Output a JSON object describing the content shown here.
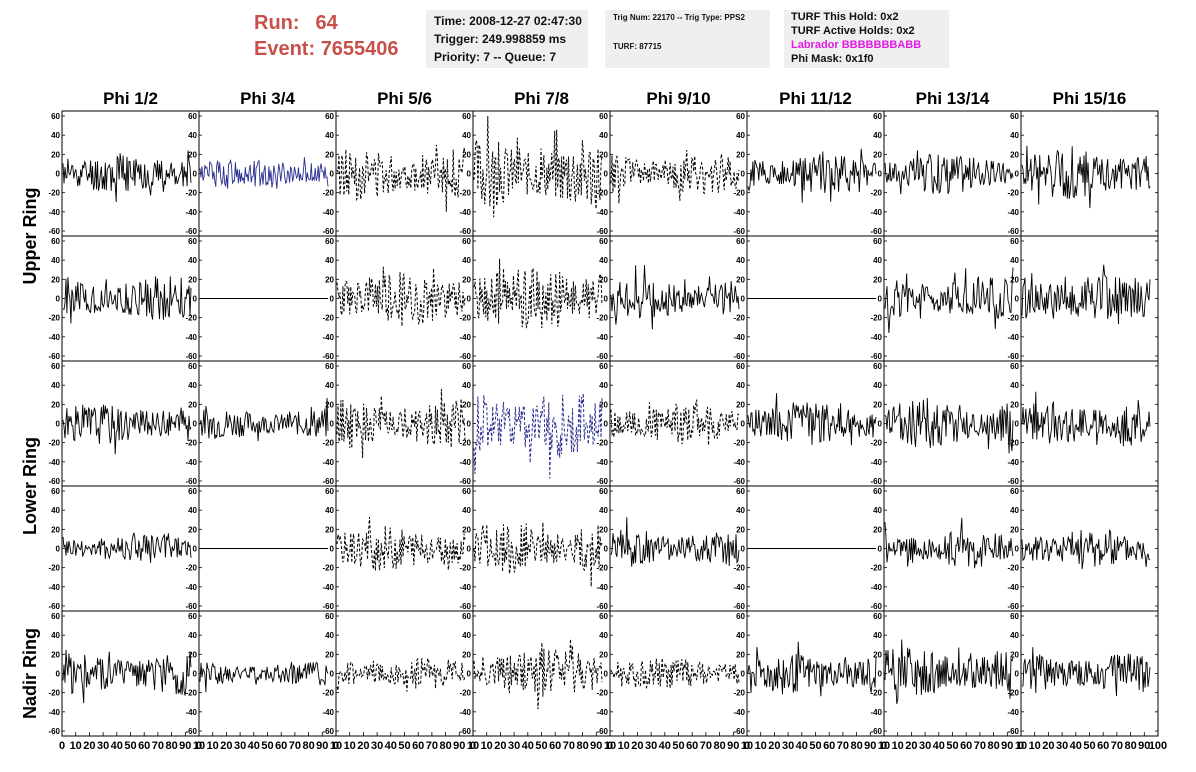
{
  "header": {
    "run_label": "Run:",
    "run_value": "64",
    "event_label": "Event:",
    "event_value": "7655406",
    "time": "Time: 2008-12-27 02:47:30",
    "trigger": "Trigger: 249.998859 ms",
    "priority": "Priority: 7 -- Queue: 7",
    "trig_num": "Trig Num: 22170 -- Trig Type: PPS2",
    "turf": "TURF: 87715",
    "turf_this_hold": "TURF This Hold: 0x2",
    "turf_active_holds": "TURF Active Holds: 0x2",
    "labrador": "Labrador BBBBBBBABB",
    "phi_mask": "Phi Mask: 0x1f0"
  },
  "colors": {
    "header_red": "#c8504b",
    "labrador_magenta": "#e31be5",
    "highlight_blue": "#2b2f8f",
    "trace_black": "#000000"
  },
  "chart_data": {
    "type": "line",
    "columns": [
      "Phi 1/2",
      "Phi 3/4",
      "Phi 5/6",
      "Phi 7/8",
      "Phi 9/10",
      "Phi 11/12",
      "Phi 13/14",
      "Phi 15/16"
    ],
    "rows": [
      "Upper Ring",
      "Lower Ring",
      "Nadir Ring"
    ],
    "y_range": [
      -60,
      60
    ],
    "x_range": [
      0,
      100
    ],
    "y_ticks": [
      -60,
      -40,
      -20,
      0,
      20,
      40,
      60
    ],
    "x_ticks": [
      0,
      10,
      20,
      30,
      40,
      50,
      60,
      70,
      80,
      90,
      100
    ],
    "x_tick_labels": [
      "0",
      "10",
      "20",
      "30",
      "40",
      "50",
      "60",
      "70",
      "80",
      "90",
      "10",
      "0",
      "10",
      "20",
      "30",
      "40",
      "50",
      "60",
      "70",
      "80",
      "90",
      "10",
      "0",
      "10",
      "20",
      "30",
      "40",
      "50",
      "60",
      "70",
      "80",
      "90",
      "10",
      "0",
      "10",
      "20",
      "30",
      "40",
      "50",
      "60",
      "70",
      "80",
      "90",
      "10",
      "0",
      "10",
      "20",
      "30",
      "40",
      "50",
      "60",
      "70",
      "80",
      "90",
      "10",
      "0",
      "10",
      "20",
      "30",
      "40",
      "50",
      "60",
      "70",
      "80",
      "90",
      "10",
      "0",
      "10",
      "20",
      "30",
      "40",
      "50",
      "60",
      "70",
      "80",
      "90",
      "10",
      "0",
      "10",
      "20",
      "30",
      "40",
      "50",
      "60",
      "70",
      "80",
      "90",
      "100"
    ],
    "panels": [
      {
        "row": 0,
        "col": 0,
        "style": "solid",
        "color": "black",
        "amplitude": 20,
        "seed": 11
      },
      {
        "row": 0,
        "col": 1,
        "style": "solid",
        "color": "blue",
        "amplitude": 15,
        "seed": 12
      },
      {
        "row": 0,
        "col": 2,
        "style": "dashed",
        "color": "black",
        "amplitude": 25,
        "seed": 13
      },
      {
        "row": 0,
        "col": 3,
        "style": "dashed",
        "color": "black",
        "amplitude": 35,
        "seed": 14
      },
      {
        "row": 0,
        "col": 4,
        "style": "dashed",
        "color": "black",
        "amplitude": 20,
        "seed": 15
      },
      {
        "row": 0,
        "col": 5,
        "style": "solid",
        "color": "black",
        "amplitude": 20,
        "seed": 16
      },
      {
        "row": 0,
        "col": 6,
        "style": "solid",
        "color": "black",
        "amplitude": 20,
        "seed": 17
      },
      {
        "row": 0,
        "col": 7,
        "style": "solid",
        "color": "black",
        "amplitude": 25,
        "seed": 18
      },
      {
        "row": 1,
        "col": 0,
        "style": "solid",
        "color": "black",
        "amplitude": 22,
        "seed": 21
      },
      {
        "row": 1,
        "col": 1,
        "style": "flat",
        "color": "black",
        "amplitude": 0,
        "seed": 22
      },
      {
        "row": 1,
        "col": 2,
        "style": "dashed",
        "color": "black",
        "amplitude": 28,
        "seed": 23
      },
      {
        "row": 1,
        "col": 3,
        "style": "dashed",
        "color": "black",
        "amplitude": 32,
        "seed": 24
      },
      {
        "row": 1,
        "col": 4,
        "style": "solid",
        "color": "black",
        "amplitude": 20,
        "seed": 25
      },
      {
        "row": 1,
        "col": 5,
        "style": "flat",
        "color": "black",
        "amplitude": 0,
        "seed": 26
      },
      {
        "row": 1,
        "col": 6,
        "style": "solid",
        "color": "black",
        "amplitude": 22,
        "seed": 27
      },
      {
        "row": 1,
        "col": 7,
        "style": "solid",
        "color": "black",
        "amplitude": 25,
        "seed": 28
      },
      {
        "row": 2,
        "col": 0,
        "style": "solid",
        "color": "black",
        "amplitude": 20,
        "seed": 31
      },
      {
        "row": 2,
        "col": 1,
        "style": "solid",
        "color": "black",
        "amplitude": 15,
        "seed": 32
      },
      {
        "row": 2,
        "col": 2,
        "style": "dashed",
        "color": "black",
        "amplitude": 25,
        "seed": 33
      },
      {
        "row": 2,
        "col": 3,
        "style": "dashed",
        "color": "blue",
        "amplitude": 35,
        "seed": 34
      },
      {
        "row": 2,
        "col": 4,
        "style": "dashed",
        "color": "black",
        "amplitude": 20,
        "seed": 35
      },
      {
        "row": 2,
        "col": 5,
        "style": "solid",
        "color": "black",
        "amplitude": 22,
        "seed": 36
      },
      {
        "row": 2,
        "col": 6,
        "style": "solid",
        "color": "black",
        "amplitude": 25,
        "seed": 37
      },
      {
        "row": 2,
        "col": 7,
        "style": "solid",
        "color": "black",
        "amplitude": 22,
        "seed": 38
      },
      {
        "row": 3,
        "col": 0,
        "style": "solid",
        "color": "black",
        "amplitude": 15,
        "seed": 41
      },
      {
        "row": 3,
        "col": 1,
        "style": "flat",
        "color": "black",
        "amplitude": 0,
        "seed": 42
      },
      {
        "row": 3,
        "col": 2,
        "style": "dashed",
        "color": "black",
        "amplitude": 22,
        "seed": 43
      },
      {
        "row": 3,
        "col": 3,
        "style": "dashed",
        "color": "black",
        "amplitude": 25,
        "seed": 44
      },
      {
        "row": 3,
        "col": 4,
        "style": "solid",
        "color": "black",
        "amplitude": 18,
        "seed": 45
      },
      {
        "row": 3,
        "col": 5,
        "style": "flat",
        "color": "black",
        "amplitude": 0,
        "seed": 46
      },
      {
        "row": 3,
        "col": 6,
        "style": "solid",
        "color": "black",
        "amplitude": 18,
        "seed": 47
      },
      {
        "row": 3,
        "col": 7,
        "style": "solid",
        "color": "black",
        "amplitude": 20,
        "seed": 48
      },
      {
        "row": 4,
        "col": 0,
        "style": "solid",
        "color": "black",
        "amplitude": 22,
        "seed": 51
      },
      {
        "row": 4,
        "col": 1,
        "style": "solid",
        "color": "black",
        "amplitude": 12,
        "seed": 52
      },
      {
        "row": 4,
        "col": 2,
        "style": "dashed",
        "color": "black",
        "amplitude": 15,
        "seed": 53
      },
      {
        "row": 4,
        "col": 3,
        "style": "dashed",
        "color": "black",
        "amplitude": 25,
        "seed": 54
      },
      {
        "row": 4,
        "col": 4,
        "style": "dashed",
        "color": "black",
        "amplitude": 15,
        "seed": 55
      },
      {
        "row": 4,
        "col": 5,
        "style": "solid",
        "color": "black",
        "amplitude": 20,
        "seed": 56
      },
      {
        "row": 4,
        "col": 6,
        "style": "solid",
        "color": "black",
        "amplitude": 25,
        "seed": 57
      },
      {
        "row": 4,
        "col": 7,
        "style": "solid",
        "color": "black",
        "amplitude": 20,
        "seed": 58
      }
    ]
  }
}
